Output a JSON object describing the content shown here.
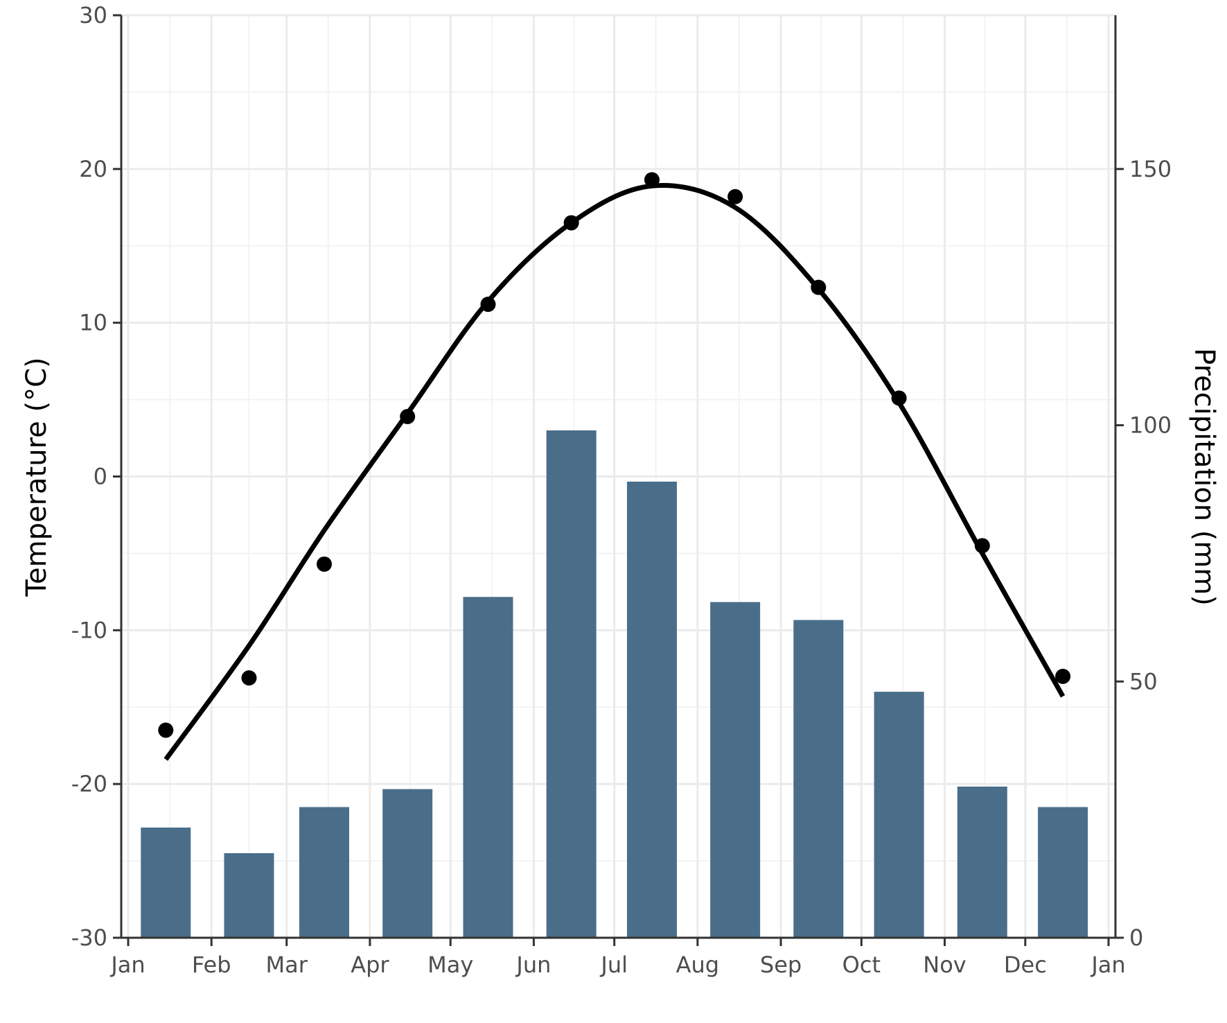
{
  "chart_data": {
    "type": "bar+line",
    "x": [
      "Jan 15",
      "Feb 15",
      "Mar 15",
      "Apr 15",
      "May 15",
      "Jun 15",
      "Jul 15",
      "Aug 15",
      "Sep 15",
      "Oct 15",
      "Nov 15",
      "Dec 15"
    ],
    "x_ticks": [
      "Jan",
      "Feb",
      "Mar",
      "Apr",
      "May",
      "Jun",
      "Jul",
      "Aug",
      "Sep",
      "Oct",
      "Nov",
      "Dec",
      "Jan"
    ],
    "series": [
      {
        "kind": "bar",
        "axis": "right",
        "values": [
          21.5,
          16.5,
          25.5,
          29,
          66.5,
          99,
          89,
          65.5,
          62,
          48,
          29.5,
          25.5
        ],
        "color": "#4a6e8a"
      },
      {
        "kind": "points",
        "axis": "left",
        "values": [
          -16.5,
          -13.1,
          -5.7,
          3.9,
          11.2,
          16.5,
          19.3,
          18.2,
          12.3,
          5.1,
          -4.5,
          -13.0
        ],
        "color": "#000000"
      },
      {
        "kind": "smooth-line",
        "axis": "left",
        "values": [
          -18.4,
          -11.0,
          -3.5,
          4.1,
          11.4,
          16.5,
          18.9,
          17.5,
          12.2,
          4.8,
          -5.0,
          -14.3
        ],
        "color": "#000000"
      }
    ],
    "ylabel": "Temperature (°C)",
    "y2label": "Precipitation (mm)",
    "ylim": [
      -30,
      30
    ],
    "yticks": [
      "30",
      "20",
      "10",
      "0",
      "-10",
      "-20",
      "-30"
    ],
    "y2lim": [
      0,
      180
    ],
    "y2ticks": [
      "150",
      "100",
      "50",
      "0"
    ],
    "grid": true
  }
}
